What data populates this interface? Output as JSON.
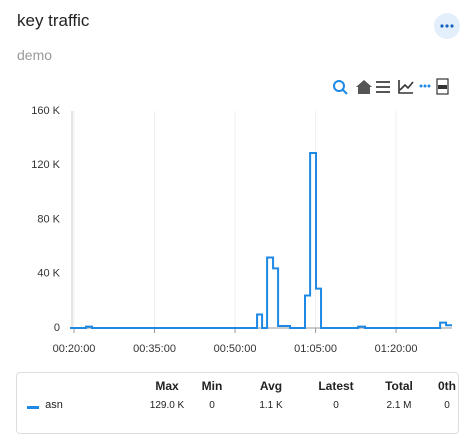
{
  "chart_data": {
    "type": "line",
    "title": "key traffic",
    "subtitle": "demo",
    "x": [
      "00:19:15",
      "00:22:14",
      "00:23:21",
      "00:54:06",
      "00:55:02",
      "00:55:58",
      "00:57:05",
      "00:58:01",
      "01:00:15",
      "01:03:02",
      "01:03:59",
      "01:05:05",
      "01:06:01",
      "01:12:55",
      "01:14:13",
      "01:28:12",
      "01:29:19",
      "01:30:25"
    ],
    "series": [
      {
        "name": "asn",
        "color": "#1e88e5",
        "values": [
          0,
          1000,
          0,
          10000,
          0,
          52000,
          44000,
          1500,
          0,
          24000,
          129000,
          29000,
          0,
          1000,
          0,
          4000,
          2000,
          2000
        ]
      }
    ],
    "step": true,
    "xlim": [
      "00:19:15",
      "01:30:25"
    ],
    "xticks": [
      "00:20:00",
      "00:35:00",
      "00:50:00",
      "01:05:00",
      "01:20:00"
    ],
    "ylim": [
      0,
      160000
    ],
    "yticks": [
      0,
      {
        "value": 40000,
        "label": "40 K"
      },
      {
        "value": 80000,
        "label": "80 K"
      },
      {
        "value": 120000,
        "label": "120 K"
      },
      {
        "value": 160000,
        "label": "160 K"
      }
    ],
    "grid": "x"
  },
  "summary_table": {
    "columns": [
      "Max",
      "Min",
      "Avg",
      "Latest",
      "Total",
      "0th"
    ],
    "rows": [
      [
        "129.0 K",
        "0",
        "1.1 K",
        "0",
        "2.1 M",
        "0"
      ]
    ]
  }
}
